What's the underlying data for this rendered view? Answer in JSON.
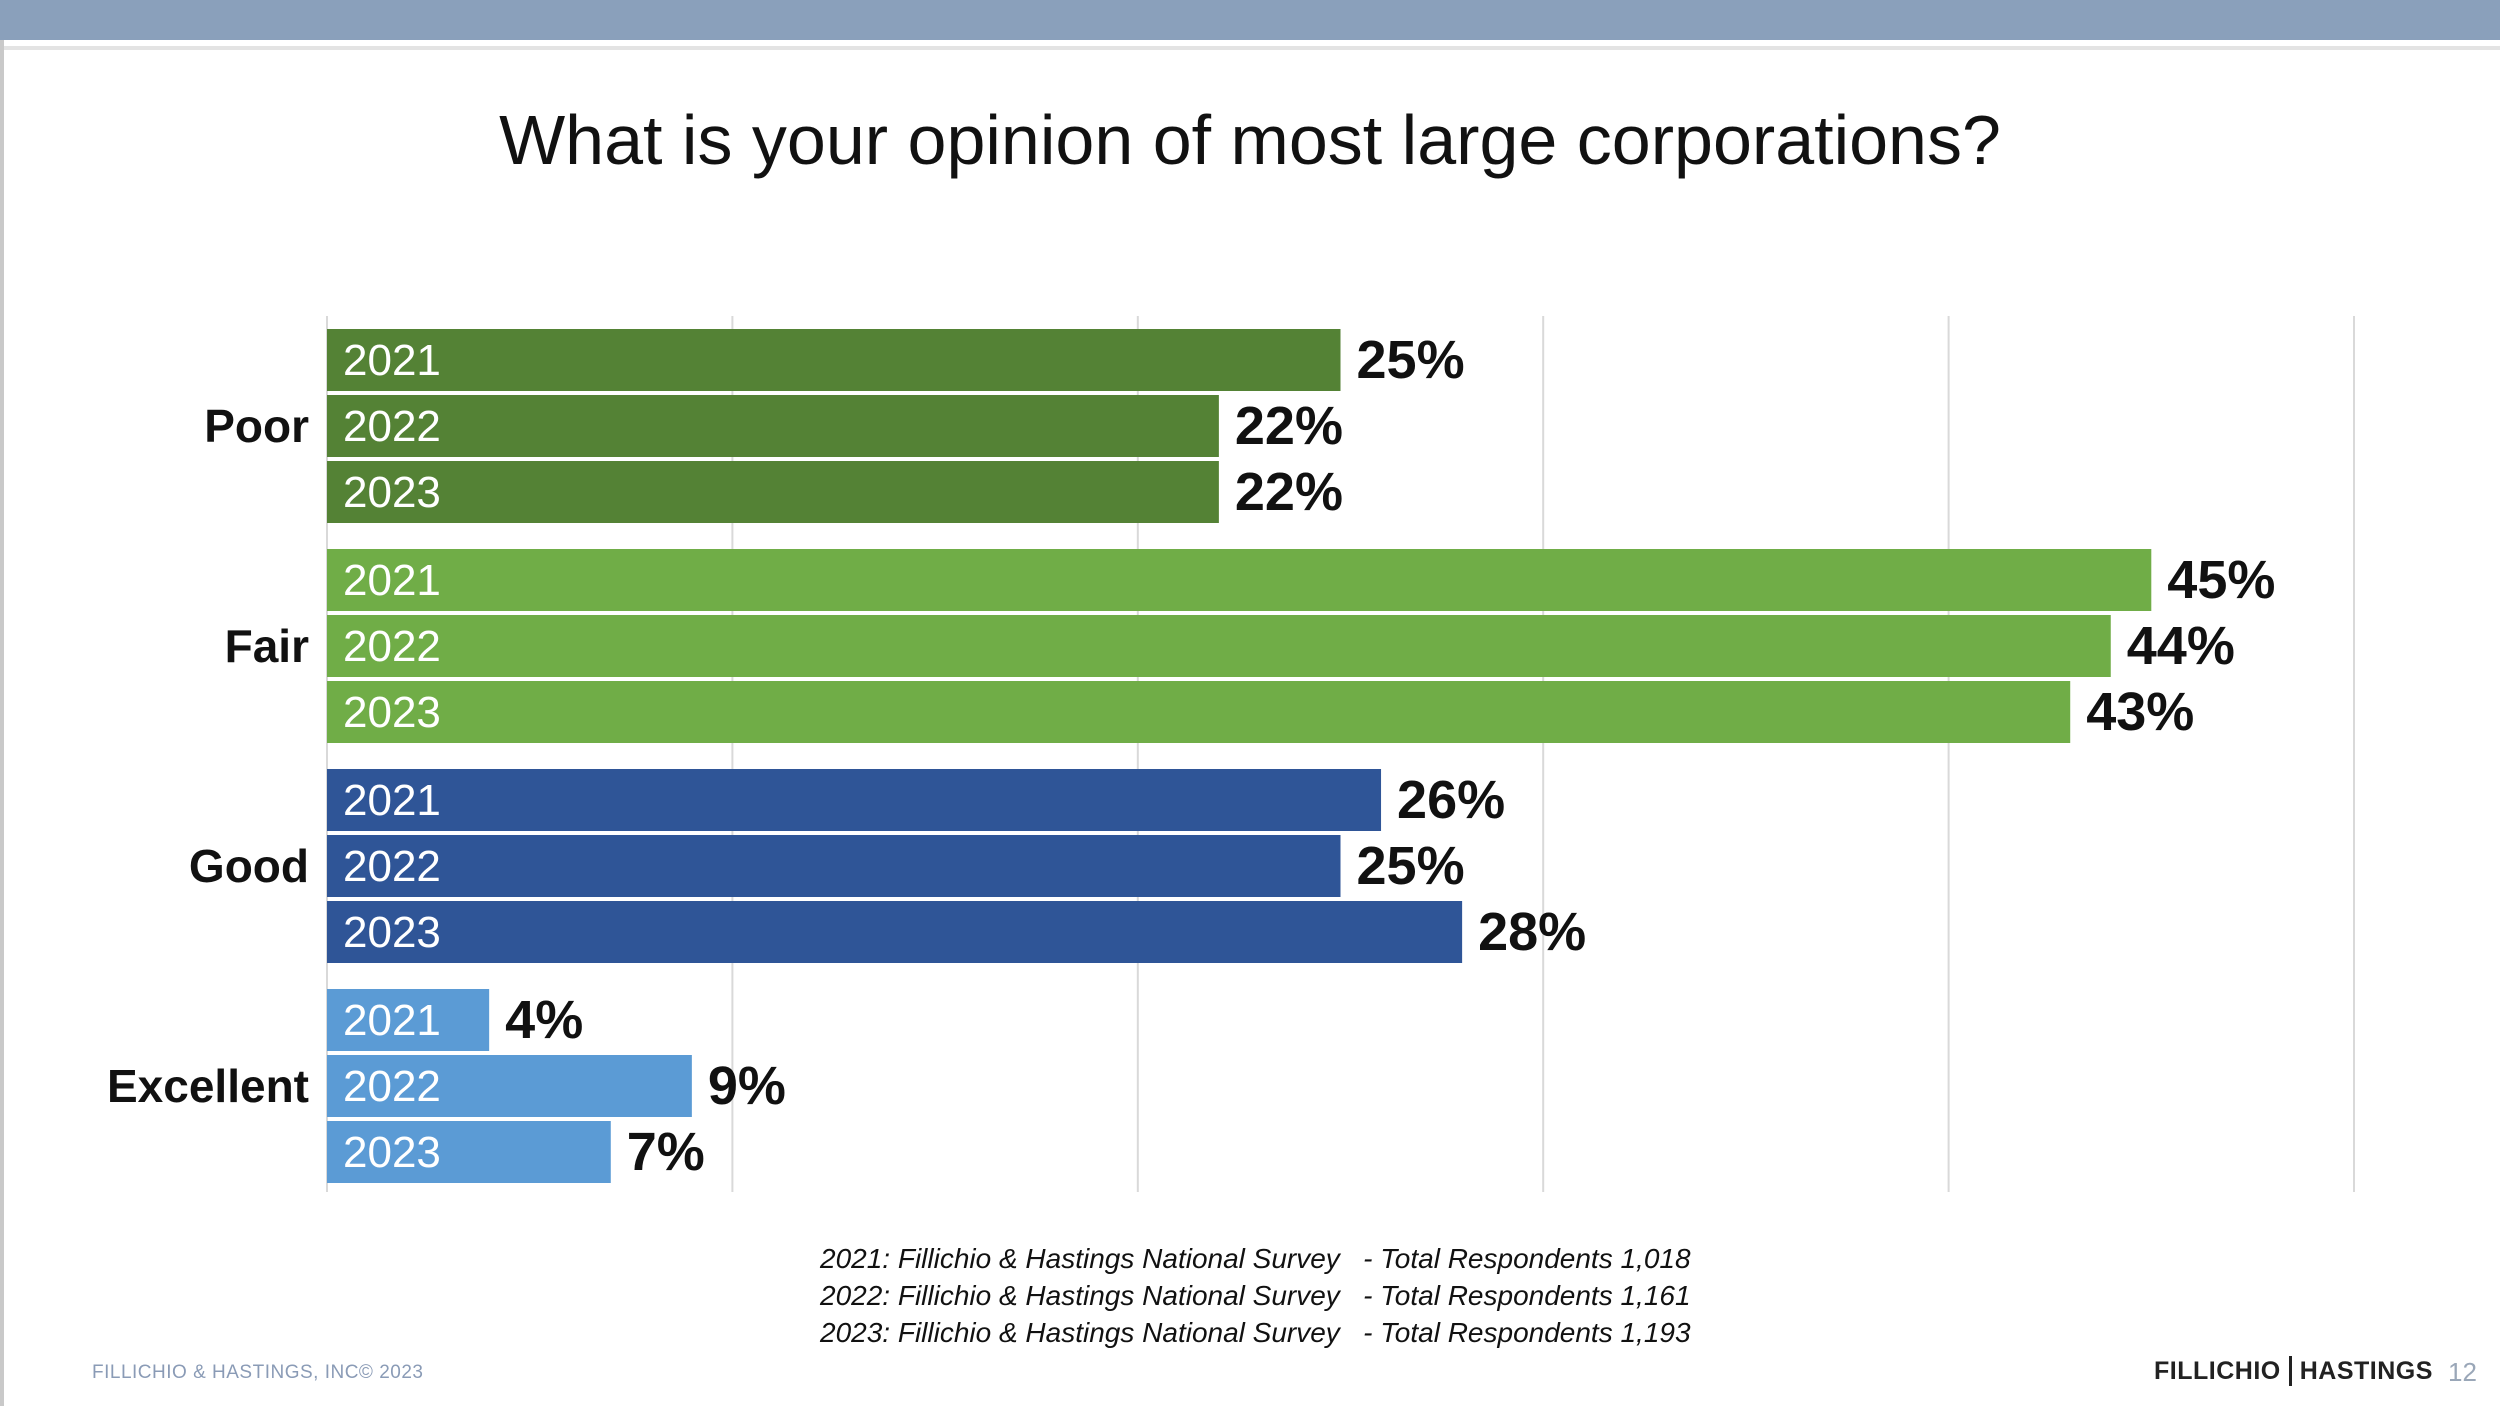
{
  "slide": {
    "title": "What is your opinion of most large corporations?",
    "footnotes": [
      "2021: Fillichio & Hastings National Survey   - Total Respondents 1,018",
      "2022: Fillichio & Hastings National Survey   - Total Respondents 1,161",
      "2023: Fillichio & Hastings National Survey   - Total Respondents 1,193"
    ],
    "copyright": "FILLICHIO & HASTINGS, INC© 2023",
    "logo_left": "FILLICHIO",
    "logo_right": "HASTINGS",
    "page_number": "12"
  },
  "chart_data": {
    "type": "bar",
    "orientation": "horizontal",
    "title": "What is your opinion of most large corporations?",
    "categories": [
      "Poor",
      "Fair",
      "Good",
      "Excellent"
    ],
    "series": [
      {
        "name": "2021",
        "values": [
          25,
          45,
          26,
          4
        ]
      },
      {
        "name": "2022",
        "values": [
          22,
          44,
          25,
          9
        ]
      },
      {
        "name": "2023",
        "values": [
          22,
          43,
          28,
          7
        ]
      }
    ],
    "value_labels": [
      [
        "25%",
        "22%",
        "22%"
      ],
      [
        "45%",
        "44%",
        "43%"
      ],
      [
        "26%",
        "25%",
        "28%"
      ],
      [
        "4%",
        "9%",
        "7%"
      ]
    ],
    "category_colors": [
      "#548235",
      "#70ad47",
      "#2f5597",
      "#5b9bd5"
    ],
    "xlim": [
      0,
      50
    ],
    "grid": true,
    "legend": "none (year labels inside bars)"
  }
}
